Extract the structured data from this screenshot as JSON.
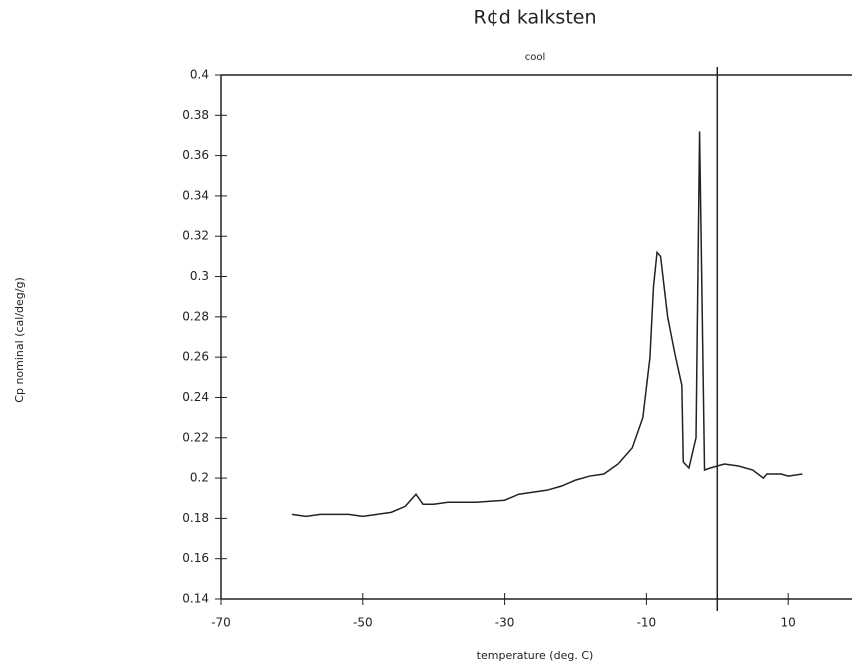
{
  "chart_data": {
    "type": "line",
    "title": "R¢d kalksten",
    "subtitle": "cool",
    "x_label": "temperature (deg. C)",
    "y_label": "Cp nominal (cal/deg/g)",
    "x": [
      -60,
      -58,
      -56,
      -52,
      -50,
      -48,
      -46,
      -44,
      -42.5,
      -41.5,
      -40,
      -38,
      -34,
      -30,
      -28,
      -24,
      -22,
      -20,
      -18,
      -16,
      -14,
      -12,
      -10.5,
      -9.5,
      -9,
      -8.5,
      -8,
      -7,
      -6,
      -5,
      -4.8,
      -4,
      -3,
      -2.5,
      -2.2,
      -1.8,
      -1,
      1,
      3,
      5,
      6.5,
      7,
      9,
      10,
      12
    ],
    "series": [
      {
        "name": "cool",
        "color": "#222222",
        "values": [
          0.182,
          0.181,
          0.182,
          0.182,
          0.181,
          0.182,
          0.183,
          0.186,
          0.192,
          0.187,
          0.187,
          0.188,
          0.188,
          0.189,
          0.192,
          0.194,
          0.196,
          0.199,
          0.201,
          0.202,
          0.207,
          0.215,
          0.23,
          0.26,
          0.295,
          0.312,
          0.31,
          0.28,
          0.262,
          0.246,
          0.208,
          0.205,
          0.22,
          0.372,
          0.3,
          0.204,
          0.205,
          0.207,
          0.206,
          0.204,
          0.2,
          0.202,
          0.202,
          0.201,
          0.202
        ]
      }
    ],
    "xlim": [
      -70,
      19
    ],
    "xticks": [
      -70,
      -50,
      -30,
      -10,
      10
    ],
    "ylim": [
      0.14,
      0.4
    ],
    "yticks": [
      0.14,
      0.16,
      0.18,
      0.2,
      0.22,
      0.24,
      0.26,
      0.28,
      0.3,
      0.32,
      0.34,
      0.36,
      0.38,
      0.4
    ],
    "vline": 0
  }
}
